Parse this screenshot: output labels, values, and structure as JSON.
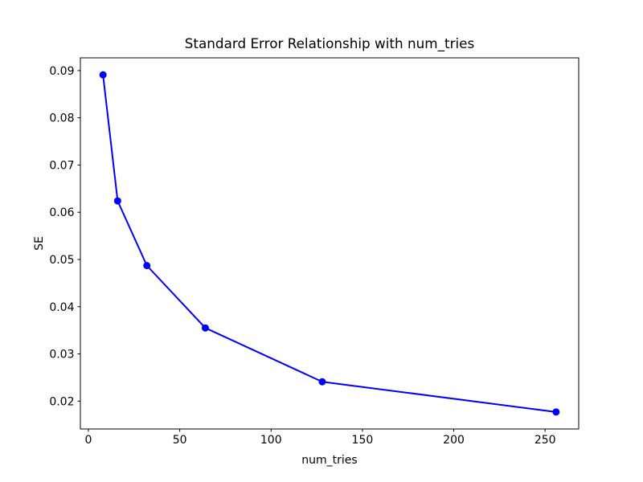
{
  "chart_data": {
    "type": "line",
    "title": "Standard Error Relationship with num_tries",
    "xlabel": "num_tries",
    "ylabel": "SE",
    "x": [
      8,
      16,
      32,
      64,
      128,
      256
    ],
    "series": [
      {
        "name": "SE",
        "values": [
          0.0891,
          0.0624,
          0.0487,
          0.0355,
          0.0241,
          0.0177
        ]
      }
    ],
    "xticks": [
      0,
      50,
      100,
      150,
      200,
      250
    ],
    "yticks": [
      0.02,
      0.03,
      0.04,
      0.05,
      0.06,
      0.07,
      0.08,
      0.09
    ],
    "xlim": [
      -4.4,
      268.4
    ],
    "ylim": [
      0.0141,
      0.0927
    ],
    "grid": false,
    "legend": null,
    "marker": "o",
    "line_color": "#0000ff",
    "axes_color": "#000000",
    "background_color": "#ffffff"
  }
}
